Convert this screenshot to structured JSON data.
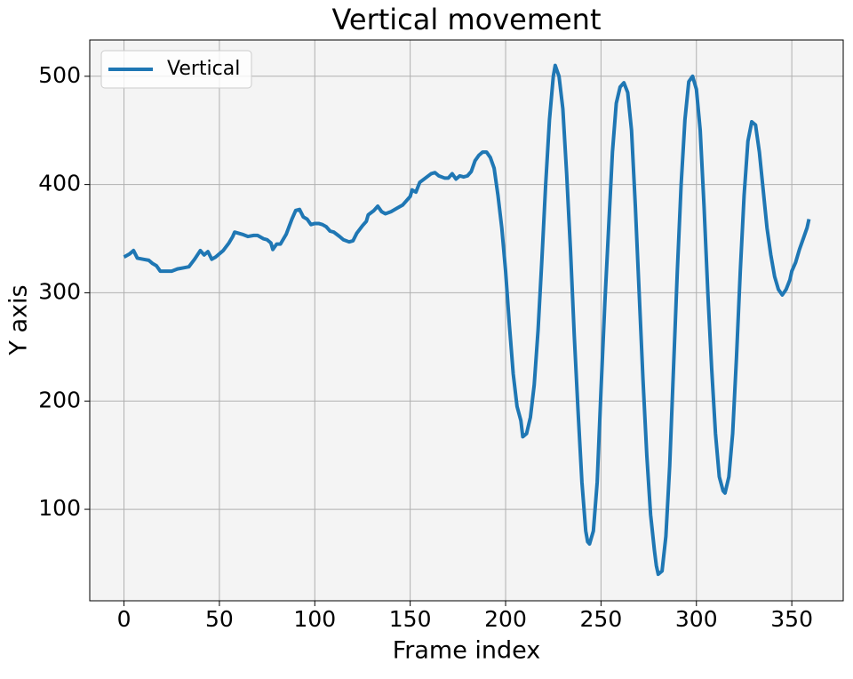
{
  "chart_data": {
    "type": "line",
    "title": "Vertical movement",
    "x_label": "Frame index",
    "y_label": "Y axis",
    "x": [
      0,
      3,
      5,
      7,
      10,
      13,
      15,
      17,
      19,
      22,
      25,
      28,
      31,
      34,
      37,
      40,
      42,
      44,
      46,
      48,
      52,
      55,
      57,
      58,
      62,
      65,
      68,
      70,
      73,
      75,
      77,
      78,
      80,
      82,
      85,
      88,
      90,
      92,
      94,
      96,
      98,
      100,
      102,
      104,
      106,
      108,
      110,
      113,
      115,
      118,
      120,
      122,
      125,
      127,
      128,
      131,
      133,
      135,
      137,
      140,
      143,
      146,
      148,
      150,
      151,
      153,
      155,
      158,
      161,
      163,
      165,
      168,
      170,
      172,
      174,
      176,
      178,
      180,
      182,
      184,
      186,
      188,
      190,
      192,
      194,
      196,
      198,
      200,
      202,
      204,
      206,
      208,
      209,
      211,
      213,
      215,
      217,
      219,
      221,
      223,
      225,
      226,
      228,
      230,
      232,
      234,
      236,
      238,
      240,
      242,
      243,
      244,
      246,
      248,
      250,
      252,
      254,
      256,
      258,
      260,
      262,
      264,
      266,
      268,
      270,
      272,
      274,
      276,
      278,
      279,
      280,
      282,
      284,
      286,
      288,
      290,
      292,
      294,
      296,
      298,
      300,
      302,
      304,
      306,
      308,
      310,
      312,
      314,
      315,
      317,
      319,
      321,
      323,
      325,
      327,
      329,
      331,
      333,
      335,
      337,
      339,
      341,
      343,
      345,
      347,
      349,
      350,
      352,
      354,
      356,
      358,
      359
    ],
    "series": [
      {
        "name": "Vertical",
        "color": "#1f77b4",
        "values": [
          333,
          336,
          339,
          332,
          331,
          330,
          327,
          325,
          320,
          320,
          320,
          322,
          323,
          324,
          331,
          339,
          335,
          338,
          331,
          333,
          339,
          346,
          352,
          356,
          354,
          352,
          353,
          353,
          350,
          349,
          346,
          340,
          345,
          345,
          354,
          368,
          376,
          377,
          370,
          368,
          363,
          364,
          364,
          363,
          361,
          357,
          356,
          352,
          349,
          347,
          348,
          355,
          362,
          366,
          372,
          376,
          380,
          375,
          373,
          375,
          378,
          381,
          385,
          389,
          395,
          393,
          402,
          406,
          410,
          411,
          408,
          406,
          406,
          410,
          405,
          408,
          407,
          408,
          412,
          422,
          427,
          430,
          430,
          425,
          415,
          390,
          360,
          320,
          270,
          225,
          195,
          182,
          167,
          170,
          185,
          215,
          265,
          330,
          400,
          460,
          500,
          510,
          500,
          470,
          410,
          340,
          260,
          190,
          125,
          80,
          70,
          68,
          80,
          125,
          210,
          290,
          360,
          430,
          475,
          490,
          494,
          485,
          450,
          380,
          300,
          220,
          150,
          95,
          62,
          48,
          40,
          43,
          75,
          140,
          230,
          320,
          400,
          460,
          495,
          500,
          488,
          450,
          380,
          300,
          230,
          170,
          130,
          117,
          115,
          130,
          170,
          240,
          320,
          390,
          440,
          458,
          455,
          430,
          395,
          360,
          335,
          315,
          303,
          298,
          303,
          312,
          320,
          328,
          340,
          350,
          360,
          368
        ]
      }
    ],
    "xlim": [
      -17.95,
      376.95
    ],
    "ylim": [
      15.5,
      533.5
    ],
    "xticks": [
      0,
      50,
      100,
      150,
      200,
      250,
      300,
      350
    ],
    "yticks": [
      100,
      200,
      300,
      400,
      500
    ],
    "grid": true,
    "legend": "upper left"
  }
}
